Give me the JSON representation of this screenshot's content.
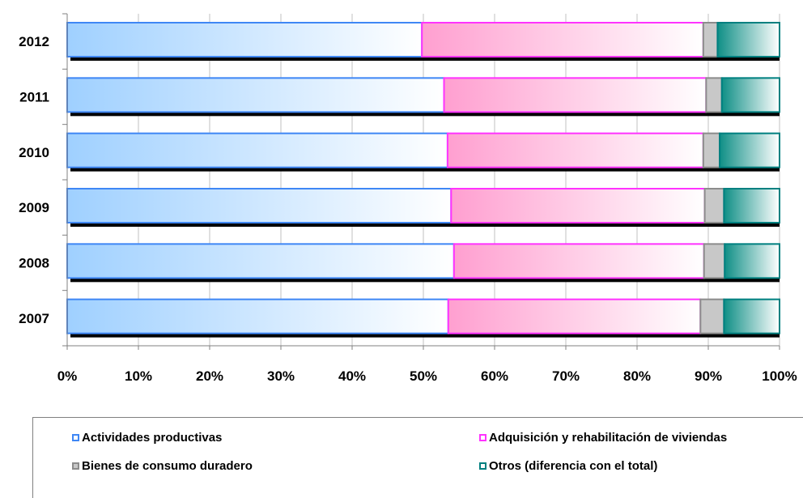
{
  "chart_data": {
    "type": "bar",
    "orientation": "horizontal",
    "stacked": "percent",
    "categories": [
      "2012",
      "2011",
      "2010",
      "2009",
      "2008",
      "2007"
    ],
    "series": [
      {
        "name": "Actividades productivas",
        "color": "#3f87f5",
        "fill": "#9fd0ff",
        "values": [
          49.8,
          52.9,
          53.4,
          53.9,
          54.3,
          53.5
        ]
      },
      {
        "name": "Adquisición y rehabilitación de viviendas",
        "color": "#ff33ff",
        "fill": "#ff9fd0",
        "values": [
          39.5,
          36.8,
          35.9,
          35.6,
          35.1,
          35.4
        ]
      },
      {
        "name": "Bienes de consumo duradero",
        "color": "#8c8c8c",
        "fill": "#c8c8c8",
        "values": [
          2.0,
          2.2,
          2.3,
          2.7,
          2.9,
          3.3
        ]
      },
      {
        "name": "Otros (diferencia con el total)",
        "color": "#008080",
        "fill": "#0f8f86",
        "values": [
          8.7,
          8.1,
          8.4,
          7.8,
          7.7,
          7.8
        ]
      }
    ],
    "xlim": [
      0,
      100
    ],
    "x_ticks": [
      "0%",
      "10%",
      "20%",
      "30%",
      "40%",
      "50%",
      "60%",
      "70%",
      "80%",
      "90%",
      "100%"
    ],
    "grid": true,
    "legend_position": "bottom"
  }
}
